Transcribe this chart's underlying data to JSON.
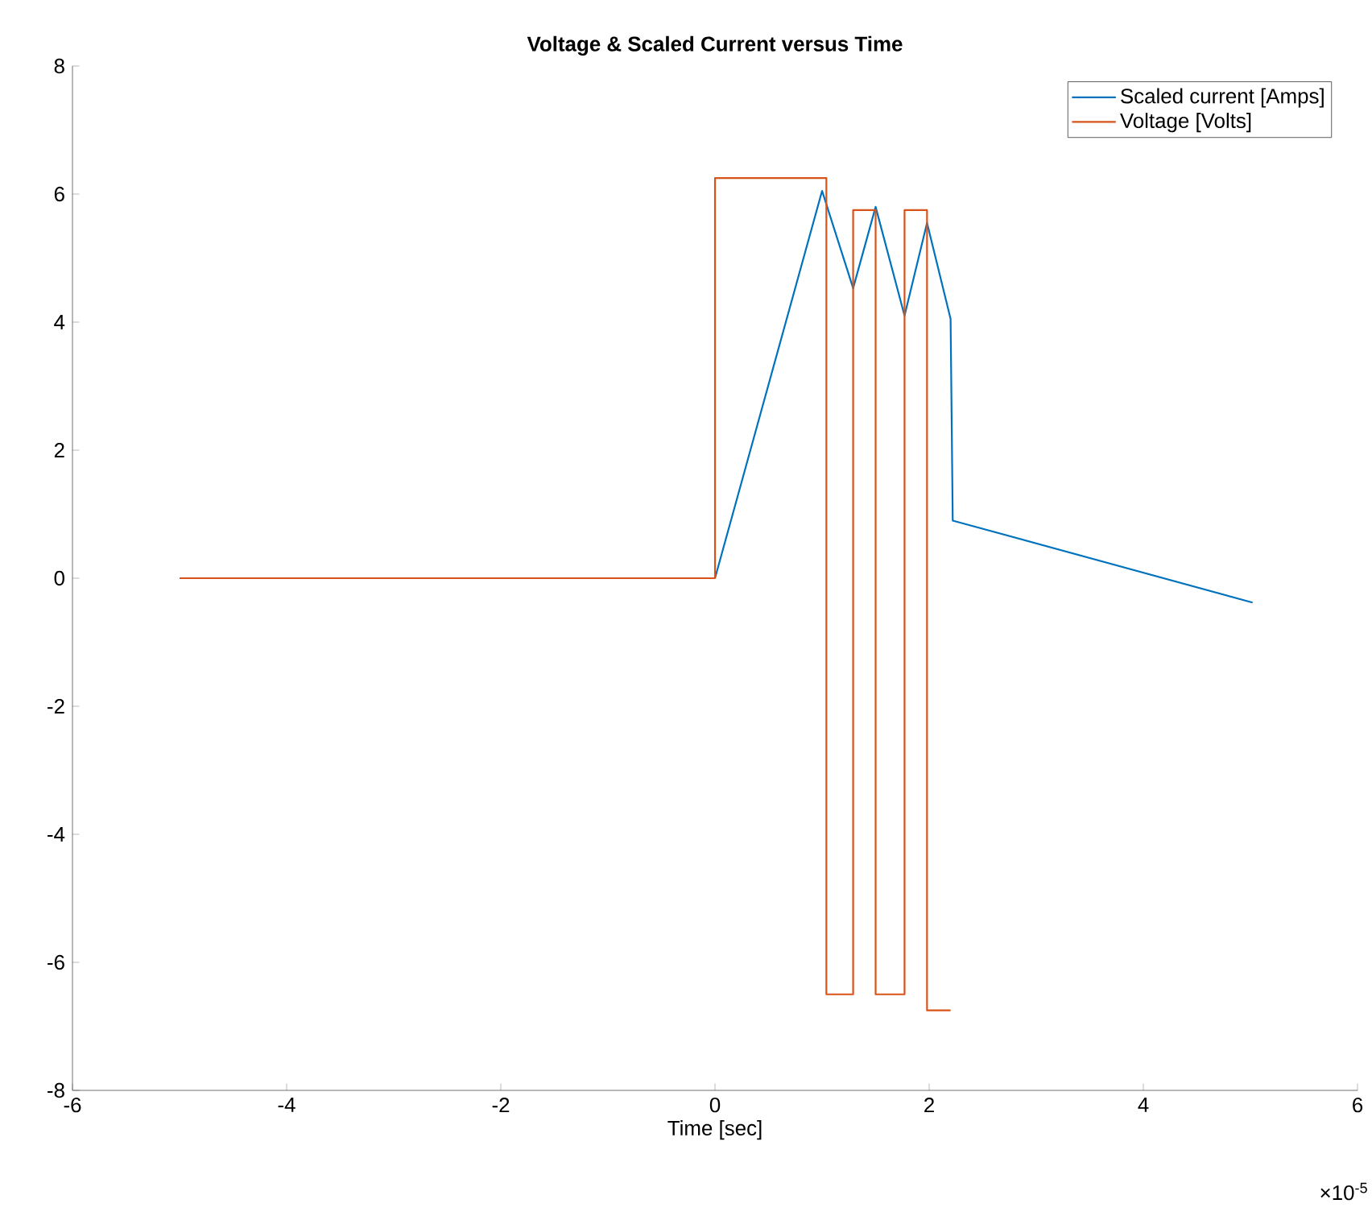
{
  "chart_data": {
    "type": "line",
    "title": "Voltage & Scaled Current versus Time",
    "xlabel": "Time [sec]",
    "xlim": [
      -6,
      6
    ],
    "ylim": [
      -8,
      8
    ],
    "xticks": [
      -6,
      -4,
      -2,
      0,
      2,
      4,
      6
    ],
    "yticks": [
      -8,
      -6,
      -4,
      -2,
      0,
      2,
      4,
      6,
      8
    ],
    "legend": "top right",
    "line_style": "solid",
    "grid": false,
    "annotations": [
      "×10$^{-5}$"
    ],
    "series": [
      {
        "name": "Scaled current [Amps]",
        "color": "#0072bd",
        "x": [
          0,
          1.0,
          1.29,
          1.5,
          1.77,
          1.98,
          2.2,
          2.22,
          5.02
        ],
        "values": [
          0,
          6.05,
          4.53,
          5.8,
          4.1,
          5.55,
          4.05,
          0.9,
          -0.38
        ]
      },
      {
        "name": "Voltage [Volts]",
        "color": "#d95319",
        "x": [
          -5,
          0,
          0,
          1.04,
          1.04,
          1.29,
          1.29,
          1.5,
          1.5,
          1.77,
          1.77,
          1.98,
          1.98,
          2.2
        ],
        "values": [
          0,
          0,
          6.25,
          6.25,
          -6.5,
          -6.5,
          5.75,
          5.75,
          -6.5,
          -6.5,
          5.75,
          5.75,
          -6.75,
          -6.75
        ]
      }
    ]
  }
}
